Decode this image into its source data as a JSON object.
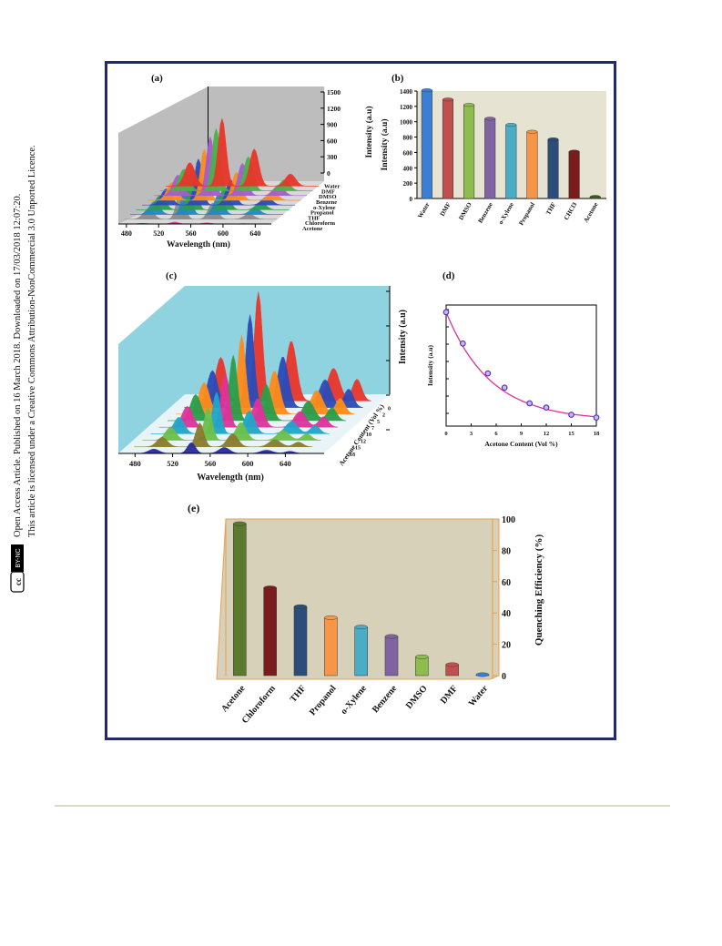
{
  "license": {
    "line1": "Open Access Article. Published on 16 March 2018. Downloaded on 17/03/2018 12:07:20.",
    "line2": "This article is licensed under a Creative Commons Attribution-NonCommercial 3.0 Unported Licence.",
    "badge_cc": "cc",
    "badge_by": "BY-NC"
  },
  "colors": {
    "frame": "#232a6b",
    "panel_b_bg": "#e7e3d2",
    "panel_e_bg": "#d8d1b9",
    "panel_c_bg": "#8fd3e0",
    "panel_a_bg": "#bdbdbd",
    "curve": "#e0329c",
    "marker": "#4f2fb0",
    "footer_rule": "#ddd9c4"
  },
  "chart_data": [
    {
      "panel": "(a)",
      "type": "area",
      "xlabel": "Wavelength (nm)",
      "ylabel": "Intensity (a.u)",
      "x_ticks": [
        "480",
        "520",
        "560",
        "600",
        "640"
      ],
      "y_ticks": [
        "0",
        "300",
        "600",
        "900",
        "1200",
        "1500"
      ],
      "xlim": [
        470,
        660
      ],
      "ylim": [
        0,
        1500
      ],
      "series": [
        {
          "name": "Water",
          "color": "#e8362b",
          "peak": 1390
        },
        {
          "name": "DMF",
          "color": "#47b34a",
          "peak": 1280
        },
        {
          "name": "DMSO",
          "color": "#a35fc7",
          "peak": 1210
        },
        {
          "name": "Benzene",
          "color": "#ff8c1a",
          "peak": 1050
        },
        {
          "name": "o-Xylene",
          "color": "#2b4bb8",
          "peak": 950
        },
        {
          "name": "Propanol",
          "color": "#2a9d4a",
          "peak": 860
        },
        {
          "name": "THF",
          "color": "#1e88c9",
          "peak": 760
        },
        {
          "name": "Chloroform",
          "color": "#8b8b8b",
          "peak": 610
        },
        {
          "name": "Acetone",
          "color": "#e0329c",
          "peak": 40
        }
      ]
    },
    {
      "panel": "(b)",
      "type": "bar",
      "ylabel": "Intensity (a.u)",
      "categories": [
        "Water",
        "DMF",
        "DMSO",
        "Benzene",
        "o-Xylene",
        "Propanol",
        "THF",
        "CHCl3",
        "Acetone"
      ],
      "values": [
        1410,
        1290,
        1220,
        1040,
        960,
        870,
        770,
        610,
        20
      ],
      "colors": [
        "#3b7fd4",
        "#c0504d",
        "#8fbc4f",
        "#8064a2",
        "#4bacc6",
        "#f79646",
        "#2c4d7a",
        "#7b1c1c",
        "#3d5a1e"
      ],
      "y_ticks": [
        "0",
        "200",
        "400",
        "600",
        "800",
        "1000",
        "1200",
        "1400"
      ],
      "ylim": [
        0,
        1400
      ]
    },
    {
      "panel": "(c)",
      "type": "area",
      "xlabel": "Wavelength (nm)",
      "ylabel": "Intensity (a.u)",
      "series_axis_label": "Acetone Content (Vol %)",
      "x_ticks": [
        "480",
        "520",
        "560",
        "600",
        "640"
      ],
      "xlim": [
        470,
        660
      ],
      "series": [
        {
          "name": "0",
          "color": "#e8362b",
          "peak": 1.0
        },
        {
          "name": "2",
          "color": "#2b4bb8",
          "peak": 0.85
        },
        {
          "name": "5",
          "color": "#ff8c1a",
          "peak": 0.72
        },
        {
          "name": "7",
          "color": "#2a9d4a",
          "peak": 0.6
        },
        {
          "name": "10",
          "color": "#e0329c",
          "peak": 0.48
        },
        {
          "name": "12",
          "color": "#1ea7c9",
          "peak": 0.38
        },
        {
          "name": "15",
          "color": "#6cc04a",
          "peak": 0.3
        },
        {
          "name": "18",
          "color": "#8a7a2a",
          "peak": 0.22
        },
        {
          "name": "",
          "color": "#2a2aa0",
          "peak": 0.1
        }
      ]
    },
    {
      "panel": "(d)",
      "type": "scatter",
      "xlabel": "Acetone Content (Vol %)",
      "ylabel": "Intensity (a.u)",
      "x": [
        0,
        2,
        5,
        7,
        10,
        12,
        15,
        18
      ],
      "y": [
        1.0,
        0.78,
        0.57,
        0.47,
        0.36,
        0.33,
        0.28,
        0.26
      ],
      "x_ticks": [
        "0",
        "3",
        "6",
        "9",
        "12",
        "15",
        "18"
      ],
      "xlim": [
        0,
        18
      ],
      "ylim": [
        0.2,
        1.05
      ]
    },
    {
      "panel": "(e)",
      "type": "bar",
      "ylabel": "Quenching Efficiency (%)",
      "categories": [
        "Acetone",
        "Chloroform",
        "THF",
        "Propanol",
        "o-Xylene",
        "Benzene",
        "DMSO",
        "DMF",
        "Water"
      ],
      "values": [
        97,
        56,
        44,
        37,
        31,
        25,
        12,
        7,
        0
      ],
      "colors": [
        "#5c7a2e",
        "#7b1c1c",
        "#2c4d7a",
        "#f79646",
        "#4bacc6",
        "#8064a2",
        "#8fbc4f",
        "#c0504d",
        "#3b7fd4"
      ],
      "y_ticks": [
        "0",
        "20",
        "40",
        "60",
        "80",
        "100"
      ],
      "ylim": [
        0,
        100
      ]
    }
  ]
}
